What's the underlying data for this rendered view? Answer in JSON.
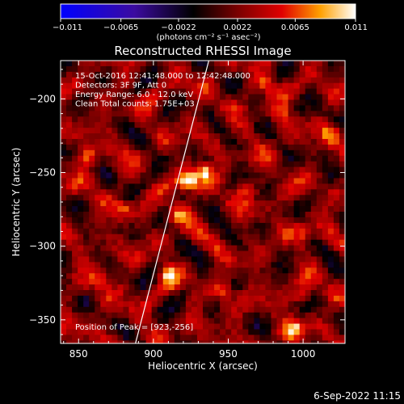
{
  "chart_data": {
    "type": "heatmap",
    "title": "Reconstructed RHESSI Image",
    "xlabel": "Heliocentric X (arcsec)",
    "ylabel": "Heliocentric Y (arcsec)",
    "xlim": [
      838,
      1028
    ],
    "ylim": [
      -366,
      -174
    ],
    "x_ticks": [
      850,
      900,
      950,
      1000
    ],
    "y_ticks": [
      -200,
      -250,
      -300,
      -350
    ],
    "grid": false,
    "annotations": [
      "15-Oct-2016 12:41:48.000 to 12:42:48.000",
      "Detectors: 3F 9F, Att 0",
      "Energy Range: 6.0 - 12.0 keV",
      "Clean     Total counts: 1.75E+03"
    ],
    "peak_label": "Position of Peak = [923,-256]",
    "peak": [
      923,
      -256
    ],
    "limb_line": [
      [
        888,
        -366
      ],
      [
        937,
        -174
      ]
    ],
    "colorbar": {
      "min": -0.011,
      "max": 0.011,
      "ticks": [
        "−0.011",
        "−0.0065",
        "−0.0022",
        "0.0022",
        "0.0065",
        "0.011"
      ],
      "unit_label": "(photons cm⁻² s⁻¹ asec⁻²)",
      "colors": [
        "#0000ff",
        "#3b0ba0",
        "#000000",
        "#7a0000",
        "#e00000",
        "#ffa000",
        "#ffffff"
      ]
    },
    "blobs": [
      {
        "x": 923,
        "y": -256,
        "v": 0.011
      },
      {
        "x": 934,
        "y": -250,
        "v": 0.0075
      },
      {
        "x": 856,
        "y": -240,
        "v": 0.0065
      },
      {
        "x": 916,
        "y": -277,
        "v": 0.006
      },
      {
        "x": 1000,
        "y": -290,
        "v": 0.0055
      },
      {
        "x": 975,
        "y": -190,
        "v": 0.005
      },
      {
        "x": 1000,
        "y": -333,
        "v": 0.005
      },
      {
        "x": 910,
        "y": -320,
        "v": 0.0055
      },
      {
        "x": 995,
        "y": -357,
        "v": 0.006
      },
      {
        "x": 866,
        "y": -322,
        "v": 0.005
      },
      {
        "x": 947,
        "y": -330,
        "v": 0.0045
      },
      {
        "x": 880,
        "y": -275,
        "v": 0.0045
      },
      {
        "x": 985,
        "y": -210,
        "v": 0.0045
      },
      {
        "x": 1018,
        "y": -224,
        "v": 0.004
      },
      {
        "x": 960,
        "y": -260,
        "v": 0.004
      }
    ]
  },
  "footer": {
    "date_stamp": "6-Sep-2022 11:15"
  }
}
